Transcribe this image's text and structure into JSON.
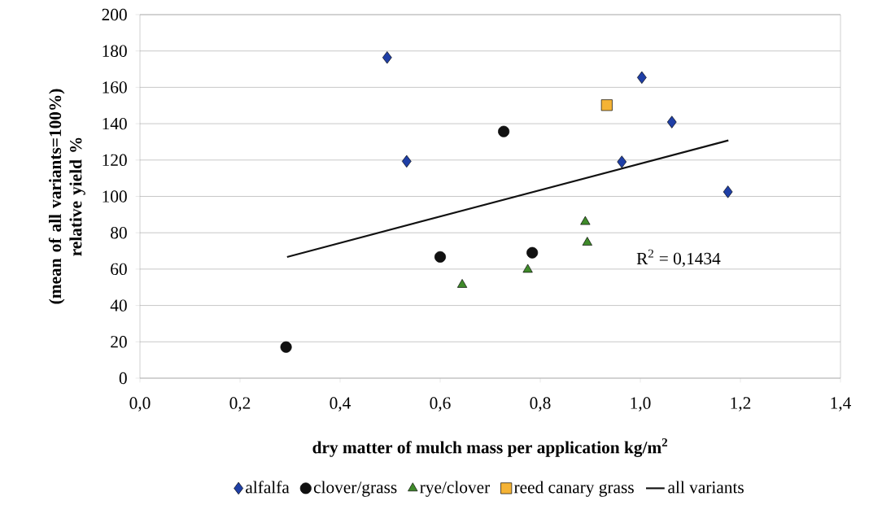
{
  "chart_data": {
    "type": "scatter",
    "xlabel": "dry matter of mulch mass per application kg/m$^{2}$",
    "ylabel": "(mean of all variants=100%) relative yield %",
    "xlim": [
      0,
      1.4
    ],
    "ylim": [
      0,
      200
    ],
    "xticks": [
      {
        "value": 0,
        "label": "0,0"
      },
      {
        "value": 0.2,
        "label": "0,2"
      },
      {
        "value": 0.4,
        "label": "0,4"
      },
      {
        "value": 0.6,
        "label": "0,6"
      },
      {
        "value": 0.8,
        "label": "0,8"
      },
      {
        "value": 1.0,
        "label": "1,0"
      },
      {
        "value": 1.2,
        "label": "1,2"
      },
      {
        "value": 1.4,
        "label": "1,4"
      }
    ],
    "yticks": [
      0,
      20,
      40,
      60,
      80,
      100,
      120,
      140,
      160,
      180,
      200
    ],
    "grid": "y",
    "legend": "bottom",
    "annotations": [
      "R$^{2}$ = 0,1434"
    ],
    "series": [
      {
        "name": "alfalfa",
        "color": "#1f3fa6",
        "marker": "diamond",
        "x": [
          0.494,
          0.533,
          1.003,
          1.063,
          0.963,
          1.175
        ],
        "values": [
          176.4,
          119.3,
          165.4,
          140.9,
          119.0,
          102.5
        ]
      },
      {
        "name": "clover/grass",
        "color": "#111111",
        "marker": "circle",
        "x": [
          0.727,
          0.6,
          0.292,
          0.784
        ],
        "values": [
          135.7,
          66.7,
          17.1,
          69.0
        ]
      },
      {
        "name": "rye/clover",
        "color": "#3f8a2a",
        "marker": "triangle",
        "x": [
          0.775,
          0.644,
          0.89,
          0.894
        ],
        "values": [
          59.7,
          51.4,
          86.0,
          74.6
        ]
      },
      {
        "name": "reed canary grass",
        "color": "#f5b335",
        "marker": "square",
        "x": [
          0.933
        ],
        "values": [
          150.2
        ]
      },
      {
        "name": "all variants",
        "type": "line",
        "color": "#111111",
        "marker": "none",
        "line_style": "solid",
        "x": [
          0.294,
          1.176
        ],
        "values": [
          66.7,
          130.8
        ]
      }
    ]
  }
}
